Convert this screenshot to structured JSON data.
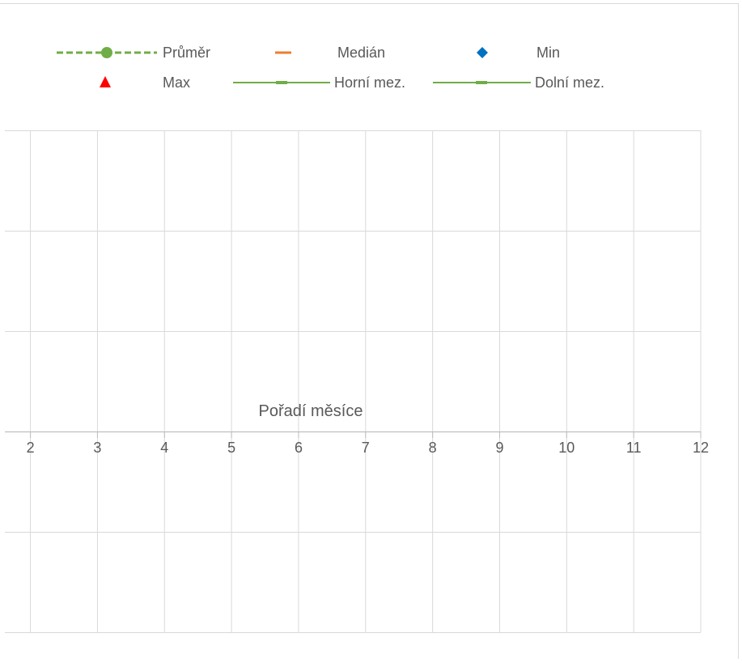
{
  "chart_data": {
    "type": "line",
    "title": "",
    "xlabel": "Pořadí měsíce",
    "ylabel": "",
    "x_ticks": [
      "2",
      "3",
      "4",
      "5",
      "6",
      "7",
      "8",
      "9",
      "10",
      "11",
      "12"
    ],
    "xlim": [
      2,
      12
    ],
    "grid": true,
    "legend_position": "top",
    "series": [
      {
        "name": "Průměr",
        "values": [],
        "color": "#70ad47",
        "style": "dashed",
        "marker": "circle"
      },
      {
        "name": "Medián",
        "values": [],
        "color": "#ed7d31",
        "marker": "dash"
      },
      {
        "name": "Min",
        "values": [],
        "color": "#0070c0",
        "marker": "diamond"
      },
      {
        "name": "Max",
        "values": [],
        "color": "#ff0000",
        "marker": "triangle"
      },
      {
        "name": "Horní mez.",
        "values": [],
        "color": "#70ad47",
        "style": "solid",
        "marker": "dash"
      },
      {
        "name": "Dolní mez.",
        "values": [],
        "color": "#70ad47",
        "style": "solid",
        "marker": "dash"
      }
    ]
  }
}
